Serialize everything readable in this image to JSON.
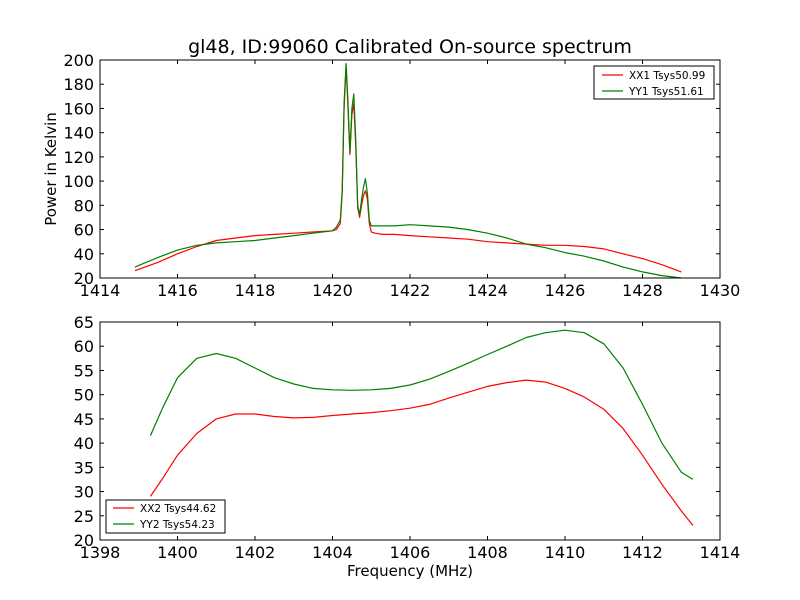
{
  "chart_data": [
    {
      "type": "line",
      "title": "gl48, ID:99060 Calibrated On-source spectrum",
      "xlabel": "",
      "ylabel": "Power in Kelvin",
      "xlim": [
        1414,
        1430
      ],
      "ylim": [
        20,
        200
      ],
      "xticks": [
        1414,
        1416,
        1418,
        1420,
        1422,
        1424,
        1426,
        1428,
        1430
      ],
      "yticks": [
        20,
        40,
        60,
        80,
        100,
        120,
        140,
        160,
        180,
        200
      ],
      "grid": false,
      "legend_position": "top-right",
      "series": [
        {
          "name": "XX1 Tsys50.99",
          "color": "#ff0000",
          "x": [
            1414.9,
            1415.5,
            1416.0,
            1416.5,
            1417.0,
            1417.5,
            1418.0,
            1418.5,
            1419.0,
            1419.5,
            1420.0,
            1420.1,
            1420.2,
            1420.25,
            1420.3,
            1420.35,
            1420.4,
            1420.45,
            1420.5,
            1420.55,
            1420.6,
            1420.65,
            1420.7,
            1420.75,
            1420.8,
            1420.85,
            1420.9,
            1420.95,
            1421.0,
            1421.1,
            1421.3,
            1421.6,
            1422.0,
            1422.5,
            1423.0,
            1423.5,
            1424.0,
            1424.5,
            1425.0,
            1425.5,
            1426.0,
            1426.5,
            1427.0,
            1427.5,
            1428.0,
            1428.5,
            1429.0
          ],
          "y": [
            26,
            33,
            40,
            46,
            51,
            53,
            55,
            56,
            57,
            58,
            59,
            60,
            65,
            90,
            160,
            195,
            160,
            122,
            155,
            164,
            130,
            78,
            70,
            80,
            88,
            92,
            85,
            65,
            58,
            57,
            56,
            56,
            55,
            54,
            53,
            52,
            50,
            49,
            48,
            47,
            47,
            46,
            44,
            40,
            36,
            31,
            25
          ]
        },
        {
          "name": "YY1 Tsys51.61",
          "color": "#008000",
          "x": [
            1414.9,
            1415.5,
            1416.0,
            1416.5,
            1417.0,
            1417.5,
            1418.0,
            1418.5,
            1419.0,
            1419.5,
            1420.0,
            1420.1,
            1420.2,
            1420.25,
            1420.3,
            1420.35,
            1420.4,
            1420.45,
            1420.5,
            1420.55,
            1420.6,
            1420.65,
            1420.7,
            1420.75,
            1420.8,
            1420.85,
            1420.9,
            1420.95,
            1421.0,
            1421.1,
            1421.3,
            1421.6,
            1422.0,
            1422.5,
            1423.0,
            1423.5,
            1424.0,
            1424.5,
            1425.0,
            1425.5,
            1426.0,
            1426.5,
            1427.0,
            1427.5,
            1428.0,
            1428.5,
            1429.0
          ],
          "y": [
            29,
            37,
            43,
            47,
            49,
            50,
            51,
            53,
            55,
            57,
            59,
            62,
            68,
            92,
            165,
            197,
            165,
            124,
            160,
            172,
            135,
            80,
            72,
            85,
            95,
            102,
            90,
            68,
            63,
            63,
            63,
            63,
            64,
            63,
            62,
            60,
            57,
            53,
            48,
            45,
            41,
            38,
            34,
            29,
            25,
            22,
            20
          ]
        }
      ]
    },
    {
      "type": "line",
      "title": "",
      "xlabel": "Frequency (MHz)",
      "ylabel": "",
      "xlim": [
        1398,
        1414
      ],
      "ylim": [
        20,
        65
      ],
      "xticks": [
        1398,
        1400,
        1402,
        1404,
        1406,
        1408,
        1410,
        1412,
        1414
      ],
      "yticks": [
        20,
        25,
        30,
        35,
        40,
        45,
        50,
        55,
        60,
        65
      ],
      "grid": false,
      "legend_position": "bottom-left",
      "series": [
        {
          "name": "XX2 Tsys44.62",
          "color": "#ff0000",
          "x": [
            1399.3,
            1399.6,
            1400.0,
            1400.5,
            1401.0,
            1401.5,
            1402.0,
            1402.5,
            1403.0,
            1403.5,
            1404.0,
            1404.5,
            1405.0,
            1405.5,
            1406.0,
            1406.5,
            1407.0,
            1407.5,
            1408.0,
            1408.5,
            1409.0,
            1409.5,
            1410.0,
            1410.5,
            1411.0,
            1411.5,
            1412.0,
            1412.5,
            1413.0,
            1413.3
          ],
          "y": [
            29,
            32.5,
            37.5,
            42,
            45,
            46,
            46,
            45.5,
            45.2,
            45.3,
            45.7,
            46,
            46.3,
            46.7,
            47.2,
            48,
            49.3,
            50.5,
            51.7,
            52.5,
            53,
            52.6,
            51.3,
            49.5,
            47,
            43,
            37.5,
            31.5,
            26,
            23
          ]
        },
        {
          "name": "YY2 Tsys54.23",
          "color": "#008000",
          "x": [
            1399.3,
            1399.6,
            1400.0,
            1400.5,
            1401.0,
            1401.5,
            1402.0,
            1402.5,
            1403.0,
            1403.5,
            1404.0,
            1404.5,
            1405.0,
            1405.5,
            1406.0,
            1406.5,
            1407.0,
            1407.5,
            1408.0,
            1408.5,
            1409.0,
            1409.5,
            1410.0,
            1410.5,
            1411.0,
            1411.5,
            1412.0,
            1412.5,
            1413.0,
            1413.3
          ],
          "y": [
            41.5,
            47,
            53.5,
            57.5,
            58.5,
            57.5,
            55.5,
            53.5,
            52.2,
            51.3,
            51,
            50.9,
            51,
            51.3,
            52,
            53.2,
            54.8,
            56.5,
            58.3,
            60,
            61.8,
            62.8,
            63.3,
            62.8,
            60.5,
            55.5,
            48,
            40,
            34,
            32.5
          ]
        }
      ]
    }
  ]
}
